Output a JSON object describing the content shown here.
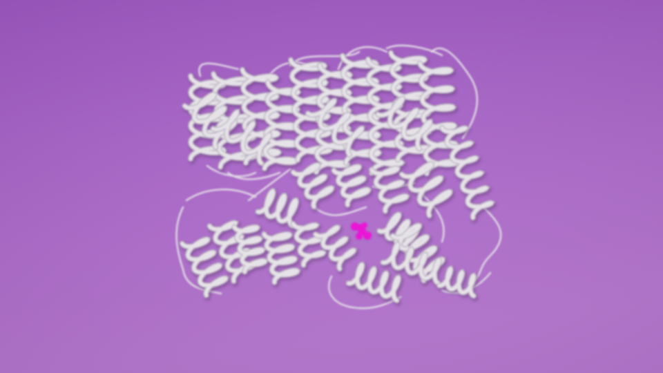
{
  "scene": {
    "subject": "protein-ribbon-structure",
    "colors": {
      "background_top": "#9c56c0",
      "background_bottom": "#b677cf",
      "ribbon": "#e6e3e8",
      "ribbon_shade": "#b9b2bf",
      "ligand": "#ea12d6"
    }
  }
}
